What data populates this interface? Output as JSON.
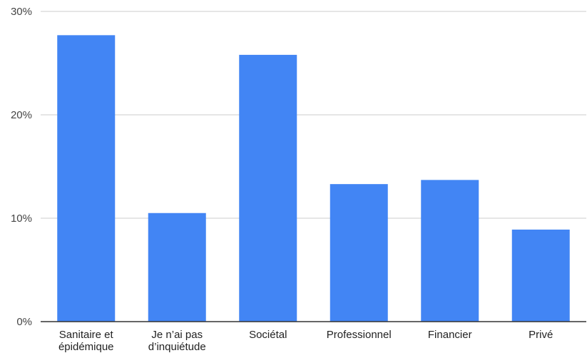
{
  "chart_data": {
    "type": "bar",
    "categories": [
      [
        "Sanitaire et",
        "épidémique"
      ],
      [
        "Je n’ai pas",
        "d’inquiétude"
      ],
      [
        "Sociétal"
      ],
      [
        "Professionnel"
      ],
      [
        "Financier"
      ],
      [
        "Privé"
      ]
    ],
    "values": [
      27.7,
      10.5,
      25.8,
      13.3,
      13.7,
      8.9
    ],
    "y_ticks": [
      {
        "value": 0,
        "label": "0%"
      },
      {
        "value": 10,
        "label": "10%"
      },
      {
        "value": 20,
        "label": "20%"
      },
      {
        "value": 30,
        "label": "30%"
      }
    ],
    "ylim": [
      0,
      30
    ],
    "title": "",
    "xlabel": "",
    "ylabel": "",
    "grid": true,
    "legend": "none",
    "bar_color": "#4285f4"
  }
}
